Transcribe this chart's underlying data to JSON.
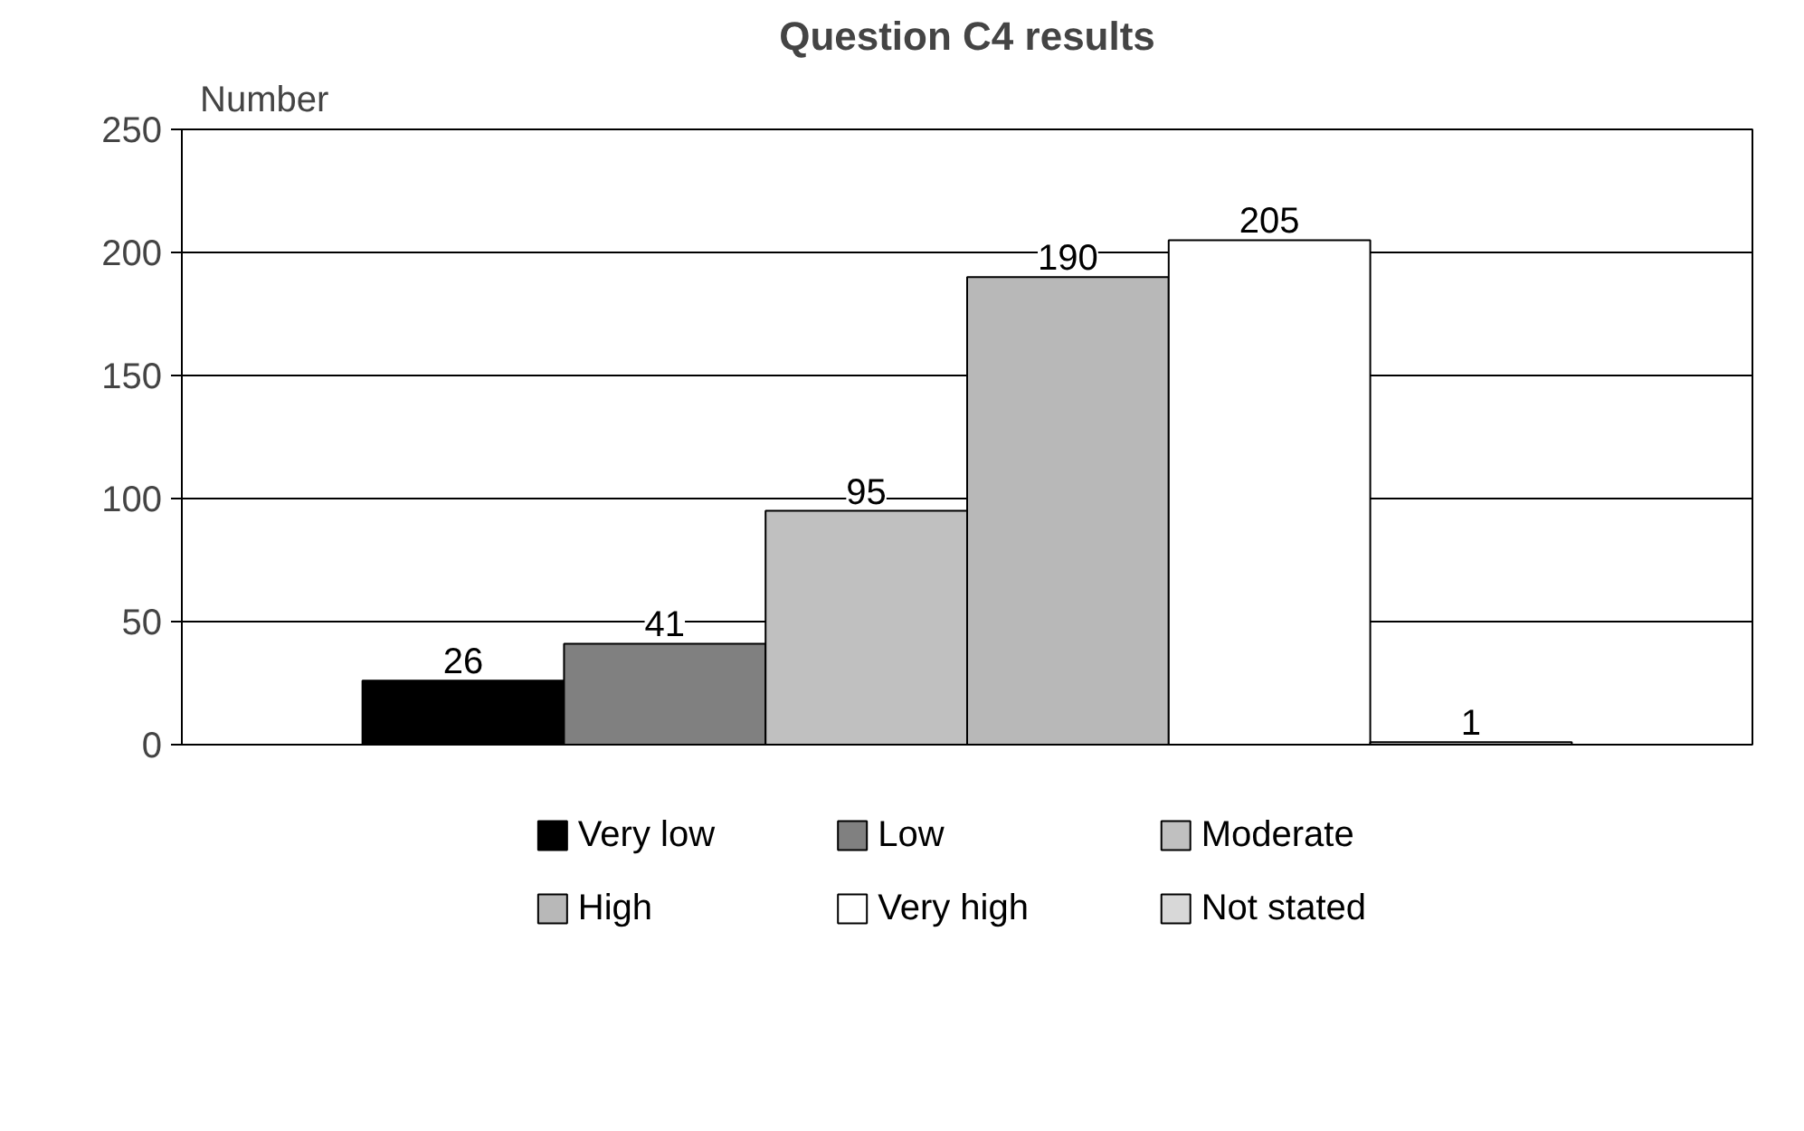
{
  "chart_data": {
    "type": "bar",
    "title": "Question C4 results",
    "ylabel": "Number",
    "categories": [
      null
    ],
    "series": [
      {
        "name": "Very low",
        "color": "#000000",
        "values": [
          26
        ]
      },
      {
        "name": "Low",
        "color": "#808080",
        "values": [
          41
        ]
      },
      {
        "name": "Moderate",
        "color": "#c0c0c0",
        "values": [
          95
        ]
      },
      {
        "name": "High",
        "color": "#b8b8b8",
        "values": [
          190
        ]
      },
      {
        "name": "Very high",
        "color": "#ffffff",
        "values": [
          205
        ]
      },
      {
        "name": "Not stated",
        "color": "#d8d8d8",
        "values": [
          1
        ]
      }
    ],
    "ylim": [
      0,
      250
    ],
    "yticks": [
      0,
      50,
      100,
      150,
      200,
      250
    ],
    "grid": "y",
    "legend": "bottom",
    "data_labels": true
  }
}
